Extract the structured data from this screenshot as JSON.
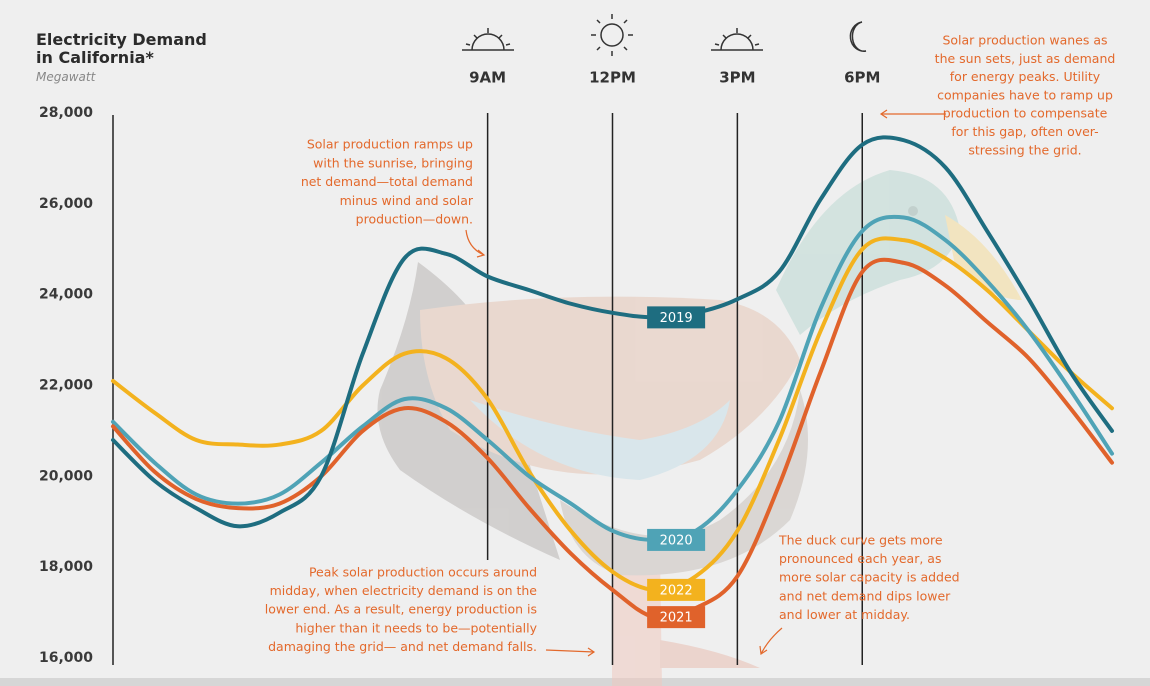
{
  "chart_data": {
    "type": "line",
    "title": "Electricity Demand in California*",
    "y_label": "Megawatt",
    "x": [
      0,
      1,
      2,
      3,
      4,
      5,
      6,
      7,
      8,
      9,
      10,
      11,
      12,
      13,
      14,
      15,
      16,
      17,
      18,
      19,
      20,
      21,
      22,
      23,
      24
    ],
    "xlim": [
      0,
      24
    ],
    "xticks": [
      {
        "value": 9,
        "label": "9AM"
      },
      {
        "value": 12,
        "label": "12PM"
      },
      {
        "value": 15,
        "label": "3PM"
      },
      {
        "value": 18,
        "label": "6PM"
      }
    ],
    "ylim": [
      16000,
      28000
    ],
    "yticks": [
      {
        "value": 16000,
        "label": "16,000"
      },
      {
        "value": 18000,
        "label": "18,000"
      },
      {
        "value": 20000,
        "label": "20,000"
      },
      {
        "value": 22000,
        "label": "22,000"
      },
      {
        "value": 24000,
        "label": "24,000"
      },
      {
        "value": 26000,
        "label": "26,000"
      },
      {
        "value": 28000,
        "label": "28,000"
      }
    ],
    "series": [
      {
        "name": "2022",
        "color": "#f3b21e",
        "values": [
          22100,
          21400,
          20800,
          20700,
          20700,
          21000,
          22000,
          22700,
          22600,
          21700,
          20100,
          18800,
          17900,
          17500,
          17800,
          18800,
          20800,
          23200,
          25000,
          25200,
          24800,
          24100,
          23200,
          22300,
          21500
        ]
      },
      {
        "name": "2020",
        "color": "#4fa3b6",
        "values": [
          21200,
          20300,
          19600,
          19400,
          19600,
          20300,
          21100,
          21700,
          21500,
          20800,
          20000,
          19400,
          18800,
          18600,
          18800,
          19700,
          21200,
          23700,
          25400,
          25700,
          25200,
          24300,
          23200,
          21900,
          20500
        ]
      },
      {
        "name": "2021",
        "color": "#e0622b",
        "values": [
          21100,
          20100,
          19500,
          19300,
          19400,
          20000,
          21000,
          21500,
          21200,
          20400,
          19300,
          18300,
          17500,
          16900,
          17100,
          17800,
          19800,
          22300,
          24500,
          24700,
          24200,
          23400,
          22600,
          21500,
          20300
        ]
      },
      {
        "name": "2019",
        "color": "#1e6d80",
        "values": [
          20800,
          19900,
          19300,
          18900,
          19200,
          20000,
          22700,
          24800,
          24900,
          24400,
          24100,
          23800,
          23600,
          23500,
          23600,
          23900,
          24500,
          26100,
          27300,
          27400,
          26800,
          25400,
          23900,
          22300,
          21000
        ]
      }
    ],
    "annotations": [
      {
        "lines": [
          "Solar production ramps up",
          "with the sunrise, bringing",
          "net demand—total demand",
          "minus wind and solar",
          "production—down."
        ]
      },
      {
        "lines": [
          "Solar production wanes as",
          "the sun sets, just as demand",
          "for energy peaks. Utility",
          "companies have to ramp up",
          "production to compensate",
          "for this gap, often over-",
          "stressing the grid."
        ]
      },
      {
        "lines": [
          "Peak solar production occurs around",
          "midday, when electricity demand is on the",
          "lower end. As a result, energy production is",
          "higher than it needs to be—potentially",
          "damaging the grid— and net demand falls."
        ]
      },
      {
        "lines": [
          "The duck curve gets more",
          "pronounced each year, as",
          "more solar capacity is added",
          "and net demand dips lower",
          "and lower at midday."
        ]
      }
    ]
  }
}
